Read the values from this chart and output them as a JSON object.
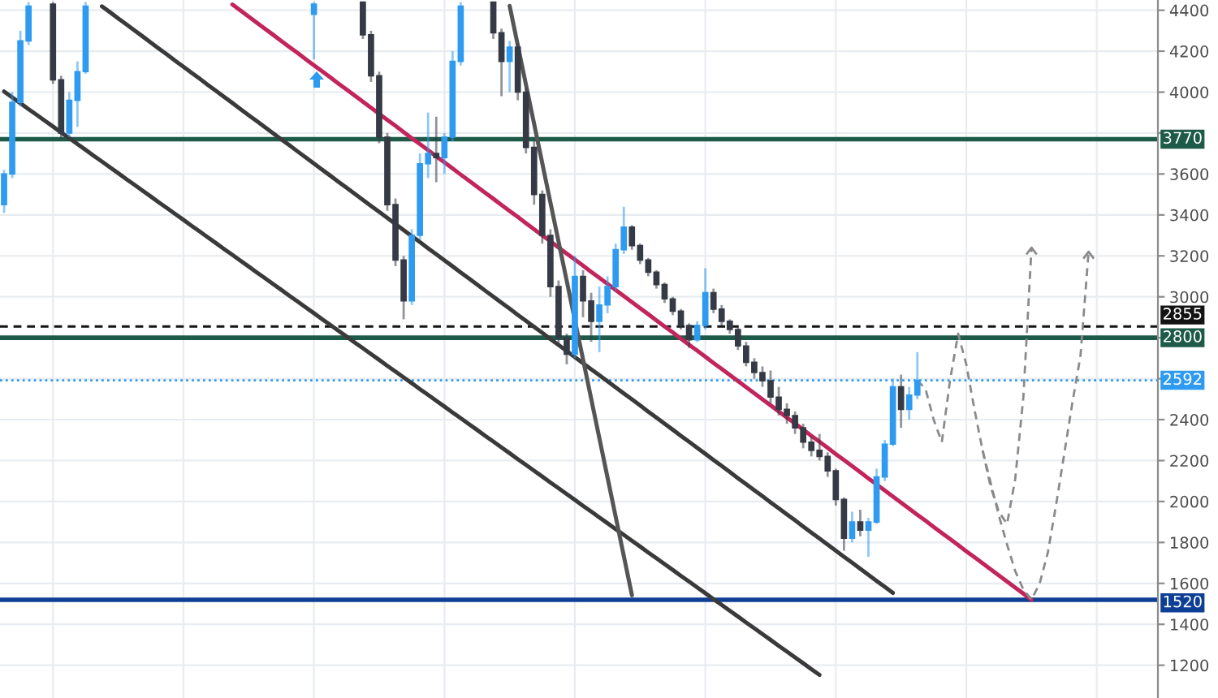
{
  "chart_data": {
    "type": "candlestick",
    "categories": [
      null,
      null,
      null,
      null,
      null,
      null,
      null,
      null,
      null,
      null,
      null,
      null,
      null,
      null,
      null,
      null,
      null,
      null,
      null,
      null,
      null,
      null,
      null,
      null,
      null,
      null,
      null,
      null,
      null,
      null,
      null,
      null,
      null,
      null,
      null,
      null,
      null,
      null,
      null,
      null,
      null,
      null,
      null,
      null,
      null,
      null,
      null,
      null,
      null,
      null,
      null,
      null,
      null,
      null,
      null,
      null,
      null,
      null,
      null,
      null,
      null,
      null,
      null,
      null,
      null,
      null,
      null,
      null,
      null,
      null,
      null,
      null,
      null,
      null,
      null,
      null,
      null,
      null,
      null,
      null,
      null,
      null,
      null,
      null,
      null,
      null,
      null,
      null,
      null,
      null,
      null,
      null,
      null,
      null,
      null,
      null,
      null,
      null,
      null,
      null,
      null,
      null,
      null,
      null,
      null,
      null,
      null,
      null,
      null,
      null,
      null,
      null,
      null,
      null,
      null,
      null,
      null,
      null,
      null,
      null,
      null,
      null,
      null,
      null,
      null,
      null,
      null,
      null,
      null,
      null,
      null,
      null,
      null,
      null,
      null,
      null,
      null,
      null,
      null,
      null,
      null,
      null
    ],
    "ohlc": [
      [
        3450,
        3620,
        3410,
        3600
      ],
      [
        3600,
        4000,
        3580,
        3950
      ],
      [
        3950,
        4300,
        3930,
        4250
      ],
      [
        4250,
        4440,
        4230,
        4420
      ],
      null,
      null,
      [
        4430,
        4440,
        4040,
        4060
      ],
      [
        4060,
        4080,
        3770,
        3800
      ],
      [
        3800,
        4000,
        3780,
        3960
      ],
      [
        3960,
        4150,
        3830,
        4100
      ],
      [
        4100,
        4440,
        4090,
        4420
      ],
      null,
      null,
      null,
      null,
      null,
      null,
      null,
      null,
      null,
      null,
      null,
      null,
      null,
      null,
      null,
      null,
      null,
      null,
      null,
      null,
      null,
      null,
      null,
      null,
      null,
      null,
      null,
      [
        4380,
        4440,
        4160,
        4430
      ],
      null,
      null,
      null,
      null,
      null,
      [
        4440,
        4440,
        4260,
        4280
      ],
      [
        4280,
        4300,
        4050,
        4080
      ],
      [
        4080,
        4100,
        3750,
        3780
      ],
      [
        3780,
        3800,
        3420,
        3450
      ],
      [
        3450,
        3480,
        3150,
        3180
      ],
      [
        3180,
        3200,
        2890,
        2980
      ],
      [
        2980,
        3330,
        2960,
        3300
      ],
      [
        3300,
        3700,
        3280,
        3650
      ],
      [
        3650,
        3900,
        3580,
        3700
      ],
      [
        3700,
        3880,
        3560,
        3680
      ],
      [
        3680,
        3800,
        3600,
        3780
      ],
      [
        3780,
        4200,
        3760,
        4150
      ],
      [
        4150,
        4440,
        4130,
        4420
      ],
      null,
      null,
      null,
      [
        4440,
        4440,
        4260,
        4290
      ],
      [
        4290,
        4310,
        3980,
        4150
      ],
      [
        4150,
        4250,
        4000,
        4220
      ],
      [
        4220,
        4240,
        3960,
        4000
      ],
      [
        4000,
        4020,
        3700,
        3730
      ],
      [
        3730,
        3760,
        3450,
        3500
      ],
      [
        3500,
        3520,
        3260,
        3300
      ],
      [
        3300,
        3330,
        3000,
        3050
      ],
      [
        3050,
        3080,
        2760,
        2800
      ],
      [
        2800,
        2820,
        2670,
        2720
      ],
      [
        2720,
        3200,
        2700,
        3100
      ],
      [
        3100,
        3130,
        2900,
        2980
      ],
      [
        2980,
        3020,
        2780,
        2880
      ],
      [
        2880,
        3050,
        2730,
        2960
      ],
      [
        2960,
        3100,
        2920,
        3050
      ],
      [
        3050,
        3260,
        3030,
        3230
      ],
      [
        3230,
        3440,
        3210,
        3340
      ],
      [
        3340,
        3350,
        3230,
        3250
      ],
      [
        3250,
        3260,
        3160,
        3180
      ],
      [
        3180,
        3190,
        3100,
        3120
      ],
      [
        3120,
        3130,
        3040,
        3060
      ],
      [
        3060,
        3070,
        2970,
        2990
      ],
      [
        2990,
        3000,
        2910,
        2930
      ],
      [
        2930,
        2940,
        2840,
        2860
      ],
      [
        2860,
        2870,
        2750,
        2790
      ],
      [
        2790,
        2880,
        2780,
        2860
      ],
      [
        2860,
        3140,
        2840,
        3020
      ],
      [
        3020,
        3040,
        2920,
        2940
      ],
      [
        2940,
        2960,
        2860,
        2880
      ],
      [
        2880,
        2890,
        2820,
        2840
      ],
      [
        2840,
        2850,
        2740,
        2760
      ],
      [
        2760,
        2780,
        2660,
        2680
      ],
      [
        2680,
        2700,
        2600,
        2630
      ],
      [
        2630,
        2660,
        2560,
        2590
      ],
      [
        2590,
        2640,
        2480,
        2510
      ],
      [
        2510,
        2560,
        2420,
        2450
      ],
      [
        2450,
        2480,
        2380,
        2420
      ],
      [
        2420,
        2440,
        2330,
        2360
      ],
      [
        2360,
        2380,
        2260,
        2290
      ],
      [
        2290,
        2320,
        2220,
        2250
      ],
      [
        2250,
        2330,
        2200,
        2220
      ],
      [
        2220,
        2240,
        2120,
        2150
      ],
      [
        2150,
        2160,
        1980,
        2010
      ],
      [
        2010,
        2020,
        1760,
        1820
      ],
      [
        1820,
        1950,
        1800,
        1900
      ],
      [
        1900,
        1960,
        1830,
        1860
      ],
      [
        1860,
        1920,
        1730,
        1900
      ],
      [
        1900,
        2160,
        1890,
        2120
      ],
      [
        2120,
        2300,
        2100,
        2280
      ],
      [
        2280,
        2600,
        2270,
        2560
      ],
      [
        2560,
        2620,
        2360,
        2450
      ],
      [
        2450,
        2560,
        2400,
        2520
      ],
      [
        2520,
        2730,
        2500,
        2592
      ],
      null,
      null,
      null,
      null,
      null,
      null,
      null,
      null,
      null,
      null,
      null,
      null,
      null,
      null,
      null,
      null,
      null,
      null,
      null,
      null,
      null,
      null,
      null,
      null,
      null,
      null,
      null,
      null,
      null
    ],
    "colors": [
      "#2e9bf0",
      "#2e9bf0",
      "#2e9bf0",
      "#2e9bf0",
      null,
      null,
      "#363a45",
      "#363a45",
      "#2e9bf0",
      "#2e9bf0",
      "#2e9bf0",
      null,
      null,
      null,
      null,
      null,
      null,
      null,
      null,
      null,
      null,
      null,
      null,
      null,
      null,
      null,
      null,
      null,
      null,
      null,
      null,
      null,
      null,
      null,
      null,
      null,
      null,
      null,
      "#2e9bf0",
      null,
      null,
      null,
      null,
      null,
      "#363a45",
      "#363a45",
      "#363a45",
      "#363a45",
      "#363a45",
      "#363a45",
      "#2e9bf0",
      "#2e9bf0",
      "#2e9bf0",
      "#363a45",
      "#2e9bf0",
      "#2e9bf0",
      "#2e9bf0",
      null,
      null,
      null,
      "#363a45",
      "#363a45",
      "#2e9bf0",
      "#363a45",
      "#363a45",
      "#363a45",
      "#363a45",
      "#363a45",
      "#363a45",
      "#363a45",
      "#2e9bf0",
      "#363a45",
      "#363a45",
      "#2e9bf0",
      "#2e9bf0",
      "#2e9bf0",
      "#2e9bf0",
      "#363a45",
      "#363a45",
      "#363a45",
      "#363a45",
      "#363a45",
      "#363a45",
      "#363a45",
      "#363a45",
      "#2e9bf0",
      "#2e9bf0",
      "#363a45",
      "#363a45",
      "#363a45",
      "#363a45",
      "#363a45",
      "#363a45",
      "#363a45",
      "#363a45",
      "#363a45",
      "#363a45",
      "#363a45",
      "#363a45",
      "#363a45",
      "#363a45",
      "#363a45",
      "#363a45",
      "#363a45",
      "#2e9bf0",
      "#363a45",
      "#2e9bf0",
      "#2e9bf0",
      "#2e9bf0",
      "#2e9bf0",
      "#363a45",
      "#2e9bf0",
      "#2e9bf0",
      null,
      null,
      null,
      null,
      null,
      null,
      null,
      null,
      null,
      null,
      null,
      null,
      null,
      null,
      null,
      null,
      null,
      null,
      null,
      null,
      null,
      null,
      null,
      null,
      null,
      null,
      null,
      null,
      null
    ],
    "series": [
      {
        "type": "line",
        "color": "#c2255c",
        "values": [
          null,
          null,
          null,
          null,
          null,
          null,
          null,
          null,
          null,
          null,
          null,
          null,
          null,
          null,
          null,
          null,
          null,
          null,
          null,
          null,
          null,
          null,
          null,
          null,
          null,
          null,
          null,
          null,
          4428,
          4398,
          4369,
          4339,
          4309,
          4280,
          4250,
          4220,
          4191,
          4161,
          4131,
          4102,
          4072,
          4042,
          4013,
          3983,
          3953,
          3924,
          3894,
          3864,
          3835,
          3805,
          3775,
          3746,
          3716,
          3686,
          3657,
          3627,
          3597,
          3568,
          3538,
          3508,
          3479,
          3449,
          3419,
          3390,
          3360,
          3330,
          3300,
          3271,
          3241,
          3211,
          3182,
          3152,
          3122,
          3093,
          3063,
          3033,
          3004,
          2974,
          2944,
          2915,
          2885,
          2855,
          2826,
          2796,
          2766,
          2737,
          2707,
          2677,
          2648,
          2618,
          2588,
          2559,
          2529,
          2499,
          2470,
          2440,
          2410,
          2381,
          2351,
          2321,
          2292,
          2262,
          2232,
          2203,
          2173,
          2143,
          2113,
          2084,
          2054,
          2024,
          1995,
          1965,
          1935,
          1906,
          1876,
          1846,
          1817,
          1787,
          1757,
          1728,
          1698,
          1668,
          1639,
          1609,
          1579,
          1550,
          1520,
          null,
          null,
          null,
          null,
          null,
          null,
          null,
          null,
          null,
          null,
          null,
          null,
          null,
          null,
          null
        ]
      },
      {
        "type": "line",
        "color": "#3a3a3a",
        "values": [
          null,
          null,
          null,
          null,
          null,
          null,
          null,
          null,
          null,
          null,
          null,
          null,
          4419,
          4390,
          4360,
          4331,
          4301,
          4272,
          4242,
          4212,
          4183,
          4153,
          4124,
          4094,
          4065,
          4035,
          4006,
          3976,
          3947,
          3917,
          3887,
          3858,
          3828,
          3799,
          3769,
          3740,
          3710,
          3681,
          3651,
          3621,
          3592,
          3562,
          3533,
          3503,
          3474,
          3444,
          3415,
          3385,
          3356,
          3326,
          3296,
          3267,
          3237,
          3208,
          3178,
          3149,
          3119,
          3090,
          3060,
          3030,
          3001,
          2971,
          2942,
          2912,
          2883,
          2853,
          2824,
          2794,
          2765,
          2735,
          2705,
          2676,
          2646,
          2617,
          2587,
          2558,
          2528,
          2499,
          2469,
          2439,
          2410,
          2380,
          2351,
          2321,
          2292,
          2262,
          2233,
          2203,
          2174,
          2144,
          2114,
          2085,
          2055,
          2026,
          1996,
          1967,
          1937,
          1908,
          1878,
          1848,
          1819,
          1789,
          1760,
          1730,
          1701,
          1671,
          1642,
          1612,
          1583,
          1553,
          null,
          null,
          null,
          null,
          null,
          null,
          null,
          null,
          null,
          null,
          null,
          null,
          null,
          null,
          null,
          null,
          null,
          null,
          null,
          null,
          null,
          null,
          null,
          null,
          null,
          null,
          null,
          null,
          null,
          null,
          null,
          null
        ]
      },
      {
        "type": "line",
        "color": "#3a3a3a",
        "values": [
          4003,
          3974,
          3946,
          3917,
          3889,
          3860,
          3832,
          3803,
          3775,
          3746,
          3718,
          3689,
          3661,
          3632,
          3604,
          3575,
          3547,
          3518,
          3490,
          3461,
          3433,
          3404,
          3376,
          3347,
          3319,
          3290,
          3262,
          3233,
          3205,
          3176,
          3148,
          3119,
          3091,
          3062,
          3034,
          3005,
          2977,
          2948,
          2920,
          2891,
          2863,
          2834,
          2806,
          2777,
          2749,
          2720,
          2692,
          2663,
          2635,
          2606,
          2578,
          2549,
          2521,
          2492,
          2464,
          2435,
          2407,
          2378,
          2350,
          2321,
          2293,
          2264,
          2236,
          2207,
          2179,
          2150,
          2122,
          2093,
          2065,
          2036,
          2008,
          1979,
          1951,
          1922,
          1894,
          1865,
          1837,
          1808,
          1780,
          1751,
          1723,
          1694,
          1666,
          1637,
          1609,
          1580,
          1552,
          1523,
          1495,
          1466,
          1438,
          1409,
          1381,
          1352,
          1324,
          1295,
          1267,
          1238,
          1210,
          1181,
          1153,
          null,
          null,
          null,
          null,
          null,
          null,
          null,
          null,
          null,
          null,
          null,
          null,
          null,
          null,
          null,
          null,
          null,
          null,
          null,
          null,
          null,
          null,
          null,
          null,
          null,
          null,
          null,
          null,
          null,
          null,
          null,
          null,
          null,
          null,
          null,
          null,
          null,
          null,
          null,
          null,
          null
        ]
      },
      {
        "type": "line",
        "color": "#555555",
        "values": [
          null,
          null,
          null,
          null,
          null,
          null,
          null,
          null,
          null,
          null,
          null,
          null,
          null,
          null,
          null,
          null,
          null,
          null,
          null,
          null,
          null,
          null,
          null,
          null,
          null,
          null,
          null,
          null,
          null,
          null,
          null,
          null,
          null,
          null,
          null,
          null,
          null,
          null,
          null,
          null,
          null,
          null,
          null,
          null,
          null,
          null,
          null,
          null,
          null,
          null,
          null,
          null,
          null,
          null,
          null,
          null,
          null,
          null,
          null,
          null,
          null,
          null,
          4421,
          4229,
          4037,
          3845,
          3653,
          3461,
          3269,
          3078,
          2886,
          2694,
          2502,
          2310,
          2118,
          1926,
          1734,
          1542,
          null,
          null,
          null,
          null,
          null,
          null,
          null,
          null,
          null,
          null,
          null,
          null,
          null,
          null,
          null,
          null,
          null,
          null,
          null,
          null,
          null,
          null,
          null,
          null,
          null,
          null,
          null,
          null,
          null,
          null,
          null,
          null,
          null,
          null,
          null,
          null,
          null,
          null,
          null,
          null,
          null,
          null,
          null,
          null,
          null,
          null,
          null,
          null,
          null,
          null,
          null,
          null,
          null,
          null,
          null,
          null,
          null,
          null,
          null,
          null,
          null,
          null,
          null,
          null
        ]
      },
      {
        "type": "line",
        "color": "#8a8a8a",
        "line_style": "dashed",
        "values": [
          null,
          null,
          null,
          null,
          null,
          null,
          null,
          null,
          null,
          null,
          null,
          null,
          null,
          null,
          null,
          null,
          null,
          null,
          null,
          null,
          null,
          null,
          null,
          null,
          null,
          null,
          null,
          null,
          null,
          null,
          null,
          null,
          null,
          null,
          null,
          null,
          null,
          null,
          null,
          null,
          null,
          null,
          null,
          null,
          null,
          null,
          null,
          null,
          null,
          null,
          null,
          null,
          null,
          null,
          null,
          null,
          null,
          null,
          null,
          null,
          null,
          null,
          null,
          null,
          null,
          null,
          null,
          null,
          null,
          null,
          null,
          null,
          null,
          null,
          null,
          null,
          null,
          null,
          null,
          null,
          null,
          null,
          null,
          null,
          null,
          null,
          null,
          null,
          null,
          null,
          null,
          null,
          null,
          null,
          null,
          null,
          null,
          null,
          null,
          null,
          null,
          null,
          null,
          null,
          null,
          null,
          null,
          null,
          null,
          null,
          null,
          null,
          2592,
          2550,
          2400,
          2290,
          2590,
          2820,
          2670,
          2450,
          2250,
          2090,
          1930,
          1790,
          1660,
          1570,
          1520,
          1600,
          1750,
          1980,
          2230,
          2480,
          2710,
          3220,
          null,
          null,
          null,
          null,
          null,
          null,
          null,
          null
        ]
      },
      {
        "type": "line",
        "color": "#8a8a8a",
        "line_style": "dashed",
        "values": [
          null,
          null,
          null,
          null,
          null,
          null,
          null,
          null,
          null,
          null,
          null,
          null,
          null,
          null,
          null,
          null,
          null,
          null,
          null,
          null,
          null,
          null,
          null,
          null,
          null,
          null,
          null,
          null,
          null,
          null,
          null,
          null,
          null,
          null,
          null,
          null,
          null,
          null,
          null,
          null,
          null,
          null,
          null,
          null,
          null,
          null,
          null,
          null,
          null,
          null,
          null,
          null,
          null,
          null,
          null,
          null,
          null,
          null,
          null,
          null,
          null,
          null,
          null,
          null,
          null,
          null,
          null,
          null,
          null,
          null,
          null,
          null,
          null,
          null,
          null,
          null,
          null,
          null,
          null,
          null,
          null,
          null,
          null,
          null,
          null,
          null,
          null,
          null,
          null,
          null,
          null,
          null,
          null,
          null,
          null,
          null,
          null,
          null,
          null,
          null,
          null,
          null,
          null,
          null,
          null,
          null,
          null,
          null,
          null,
          null,
          null,
          null,
          null,
          null,
          null,
          null,
          null,
          null,
          null,
          null,
          2250,
          2070,
          1950,
          1890,
          2110,
          2510,
          3240,
          null,
          null,
          null,
          null,
          null,
          null,
          null,
          null,
          null,
          null,
          null,
          null,
          null,
          null,
          null
        ]
      }
    ],
    "ref_lines": [
      {
        "axis": "y",
        "value": 3770,
        "label": "3770",
        "color": "#1d5a48"
      },
      {
        "axis": "y",
        "value": 2855,
        "label": "2855",
        "color": "#131313",
        "line_style": "dashed"
      },
      {
        "axis": "y",
        "value": 2800,
        "label": "2800",
        "color": "#1d5a48"
      },
      {
        "axis": "y",
        "value": 2592,
        "label": "2592",
        "color": "#2e9bf0",
        "line_style": "dotted"
      },
      {
        "axis": "y",
        "value": 1520,
        "label": "1520",
        "color": "#0e3f94"
      }
    ],
    "ylim": [
      1040,
      4450
    ],
    "yticks": [
      1200,
      1400,
      1600,
      1800,
      2000,
      2200,
      2400,
      {
        "value": 2600,
        "label": null
      },
      {
        "value": 2800,
        "label": null
      },
      3000,
      3200,
      3400,
      3600,
      {
        "value": 3800,
        "label": null
      },
      4000,
      4200,
      4400
    ],
    "grid": true,
    "tick_labels": "y"
  }
}
